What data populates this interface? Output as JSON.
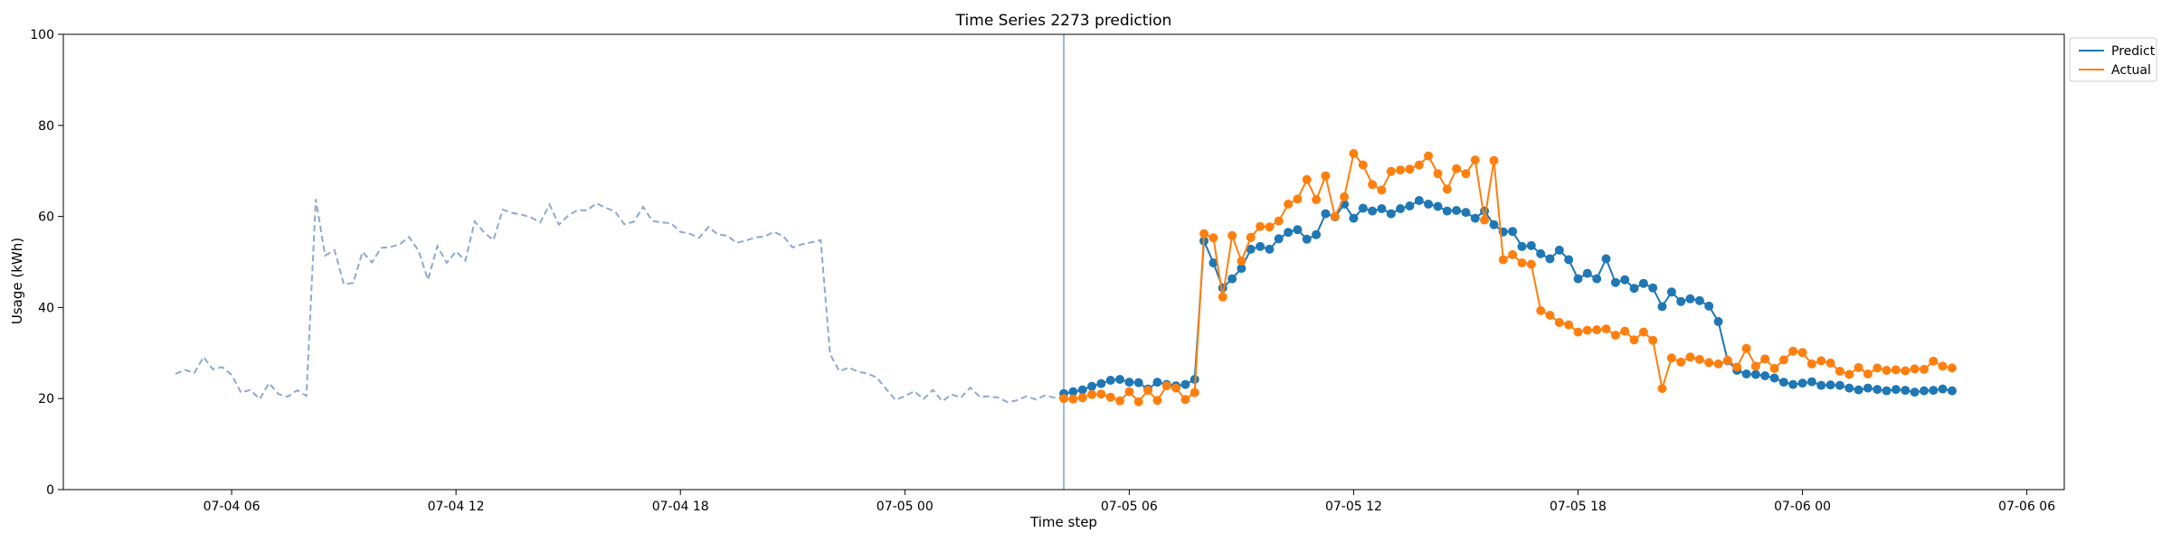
{
  "chart_data": {
    "type": "line",
    "title": "Time Series 2273 prediction",
    "xlabel": "Time step",
    "ylabel": "Usage (kWh)",
    "ylim": [
      0,
      100
    ],
    "y_ticks": [
      0,
      20,
      40,
      60,
      80,
      100
    ],
    "xlim": [
      "2025-07-04T01:30",
      "2025-07-06T07:00"
    ],
    "x_ticks": [
      {
        "t": "2025-07-04T06:00",
        "label": "07-04 06"
      },
      {
        "t": "2025-07-04T12:00",
        "label": "07-04 12"
      },
      {
        "t": "2025-07-04T18:00",
        "label": "07-04 18"
      },
      {
        "t": "2025-07-05T00:00",
        "label": "07-05 00"
      },
      {
        "t": "2025-07-05T06:00",
        "label": "07-05 06"
      },
      {
        "t": "2025-07-05T12:00",
        "label": "07-05 12"
      },
      {
        "t": "2025-07-05T18:00",
        "label": "07-05 18"
      },
      {
        "t": "2025-07-06T00:00",
        "label": "07-06 00"
      },
      {
        "t": "2025-07-06T06:00",
        "label": "07-06 06"
      }
    ],
    "grid": false,
    "legend_position": "top-right, outside plot",
    "forecast_start": "2025-07-05T04:15",
    "history": {
      "start": "2025-07-04T04:30",
      "step_minutes": 15,
      "color": "#8fa9cf",
      "values": [
        25.4,
        26.3,
        25.6,
        29.1,
        26.4,
        26.9,
        25.2,
        21.3,
        21.9,
        19.9,
        23.4,
        21.0,
        20.4,
        21.8,
        20.6,
        63.8,
        51.4,
        52.6,
        45.1,
        45.4,
        52.2,
        49.9,
        53.1,
        53.3,
        53.9,
        55.5,
        52.4,
        46.1,
        53.5,
        49.8,
        52.3,
        50.3,
        58.9,
        56.5,
        54.8,
        61.5,
        60.8,
        60.4,
        59.8,
        58.7,
        62.6,
        58.2,
        60.2,
        61.4,
        61.3,
        62.9,
        61.9,
        61.1,
        58.3,
        58.8,
        62.1,
        59.0,
        58.7,
        58.5,
        56.6,
        56.2,
        55.3,
        57.7,
        56.0,
        55.8,
        54.2,
        54.7,
        55.4,
        55.6,
        56.6,
        55.7,
        53.2,
        53.9,
        54.3,
        54.8,
        29.8,
        26.0,
        26.8,
        25.9,
        25.5,
        24.6,
        22.1,
        19.7,
        20.5,
        21.6,
        19.9,
        21.9,
        19.4,
        20.9,
        20.2,
        22.4,
        20.4,
        20.5,
        20.2,
        19.2,
        19.6,
        20.5,
        19.8,
        20.7,
        20.2,
        20.3
      ]
    },
    "series": [
      {
        "name": "Predict",
        "color": "#1f77b4",
        "start": "2025-07-05T04:15",
        "step_minutes": 15,
        "values": [
          21.1,
          21.5,
          21.9,
          22.7,
          23.3,
          24.0,
          24.2,
          23.6,
          23.5,
          22.1,
          23.6,
          23.1,
          22.8,
          23.1,
          24.2,
          54.6,
          49.8,
          44.3,
          46.3,
          48.6,
          52.8,
          53.4,
          52.8,
          55.1,
          56.5,
          57.1,
          55.0,
          56.0,
          60.6,
          59.9,
          62.7,
          59.6,
          61.8,
          61.2,
          61.7,
          60.6,
          61.7,
          62.3,
          63.5,
          62.7,
          62.2,
          61.2,
          61.3,
          60.9,
          59.6,
          61.2,
          58.2,
          56.6,
          56.7,
          53.4,
          53.6,
          51.8,
          50.7,
          52.6,
          50.5,
          46.3,
          47.5,
          46.3,
          50.7,
          45.5,
          46.1,
          44.2,
          45.3,
          44.3,
          40.2,
          43.4,
          41.3,
          41.9,
          41.5,
          40.3,
          36.9,
          28.3,
          26.2,
          25.4,
          25.3,
          25.0,
          24.5,
          23.6,
          23.1,
          23.4,
          23.7,
          22.9,
          23.0,
          22.9,
          22.3,
          21.9,
          22.3,
          22.0,
          21.7,
          22.0,
          21.8,
          21.4,
          21.7,
          21.8,
          22.1,
          21.7
        ]
      },
      {
        "name": "Actual",
        "color": "#ff7f0e",
        "start": "2025-07-05T04:15",
        "step_minutes": 15,
        "values": [
          20.0,
          19.9,
          20.2,
          20.9,
          21.0,
          20.3,
          19.5,
          21.5,
          19.3,
          21.8,
          19.6,
          22.8,
          22.3,
          19.8,
          21.3,
          56.2,
          55.3,
          42.3,
          55.8,
          50.2,
          55.4,
          57.8,
          57.7,
          59.0,
          62.7,
          63.8,
          68.1,
          63.7,
          68.9,
          60.0,
          64.3,
          73.8,
          71.3,
          67.0,
          65.8,
          69.9,
          70.2,
          70.4,
          71.3,
          73.3,
          69.4,
          66.0,
          70.5,
          69.4,
          72.4,
          59.2,
          72.3,
          50.5,
          51.6,
          49.8,
          49.5,
          39.3,
          38.3,
          36.7,
          36.2,
          34.6,
          35.0,
          35.1,
          35.3,
          33.9,
          34.8,
          32.9,
          34.6,
          32.8,
          22.2,
          28.9,
          28.0,
          29.1,
          28.6,
          27.9,
          27.6,
          28.4,
          26.9,
          31.0,
          27.1,
          28.7,
          26.6,
          28.5,
          30.4,
          30.1,
          27.6,
          28.3,
          27.8,
          26.0,
          25.3,
          26.8,
          25.4,
          26.7,
          26.2,
          26.3,
          26.1,
          26.5,
          26.4,
          28.2,
          27.1,
          26.7
        ]
      }
    ]
  }
}
